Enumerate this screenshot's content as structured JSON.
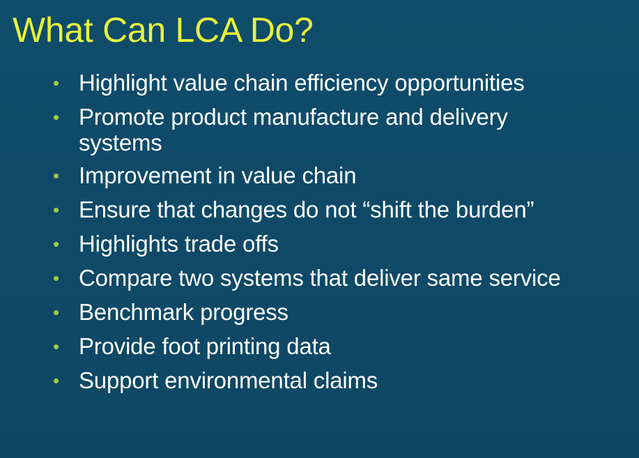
{
  "slide": {
    "title": "What Can LCA Do?",
    "bullet_symbol": "•",
    "colors": {
      "background": "#0e4a68",
      "title": "#e7f23c",
      "bullet": "#9ccf43",
      "text": "#ffffff"
    },
    "bullets": [
      "Highlight value chain efficiency opportunities",
      "Promote product manufacture and delivery systems",
      "Improvement in value chain",
      "Ensure that changes do not “shift the burden”",
      "Highlights trade offs",
      "Compare two systems that deliver same service",
      "Benchmark progress",
      "Provide foot printing data",
      "Support environmental claims"
    ]
  }
}
